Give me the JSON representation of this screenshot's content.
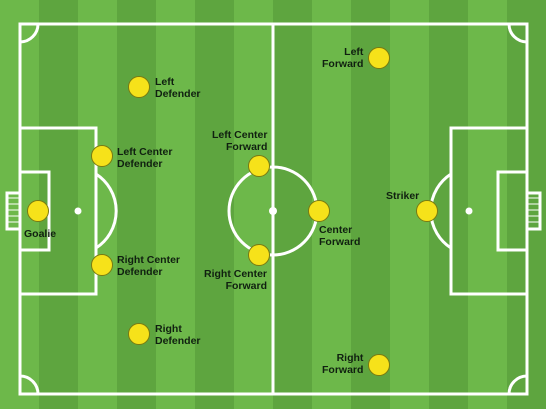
{
  "colors": {
    "grass_light": "#6db84a",
    "grass_dark": "#5ea53f",
    "line": "#ffffff",
    "player": "#f6e21a",
    "label": "#102010"
  },
  "positions": [
    {
      "id": "goalie",
      "label": "Goalie"
    },
    {
      "id": "left-defender",
      "label": "Left\nDefender"
    },
    {
      "id": "left-center-defender",
      "label": "Left Center\nDefender"
    },
    {
      "id": "right-center-defender",
      "label": "Right Center\nDefender"
    },
    {
      "id": "right-defender",
      "label": "Right\nDefender"
    },
    {
      "id": "left-center-forward",
      "label": "Left Center\nForward"
    },
    {
      "id": "right-center-forward",
      "label": "Right Center\nForward"
    },
    {
      "id": "center-forward",
      "label": "Center\nForward"
    },
    {
      "id": "left-forward",
      "label": "Left\nForward"
    },
    {
      "id": "right-forward",
      "label": "Right\nForward"
    },
    {
      "id": "striker",
      "label": "Striker"
    }
  ]
}
